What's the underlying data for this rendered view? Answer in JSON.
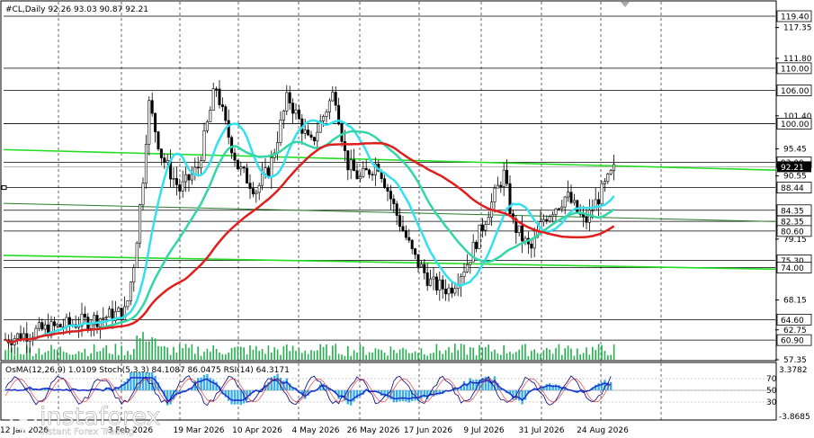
{
  "header": {
    "title": "#CL,Daily  92.26 93.03 90.87 92.21",
    "subpanel": "OsMA(12,26,9) 1.0109  Stoch(5,3,3) 84.1087 86.0475  RSI(14) 64.3171"
  },
  "watermark": {
    "brand": "instaforex",
    "tagline": "Instant Forex Trading"
  },
  "colors": {
    "candles": "#000000",
    "ma_cyan": "#33e0f0",
    "ma_teal": "#33d6a6",
    "ma_red": "#e01e1e",
    "trend_green": "#22dd22",
    "volume": "#22b14c",
    "osma_hist": "#3aaee8",
    "osma_signal": "#1a2fd0",
    "stoch_main": "#000088",
    "stoch_signal": "#ee2222"
  },
  "chart_data": {
    "type": "candlestick",
    "symbol": "#CL",
    "timeframe": "Daily",
    "last": {
      "open": 92.26,
      "high": 93.03,
      "low": 90.87,
      "close": 92.21
    },
    "ylim": [
      57.35,
      122
    ],
    "price_levels": [
      119.4,
      110.0,
      106.0,
      100.0,
      93.0,
      88.44,
      84.35,
      82.35,
      80.6,
      75.3,
      74.0,
      64.6,
      60.9
    ],
    "axis_ticks": [
      117.35,
      111.8,
      101.4,
      95.45,
      90.55,
      79.15,
      68.15,
      62.75,
      57.35
    ],
    "current_price": 92.21,
    "x_labels": [
      "12 Jan 2026",
      "3 Feb 2026",
      "19 Mar 2026",
      "10 Apr 2026",
      "4 May 2026",
      "26 May 2026",
      "17 Jun 2026",
      "9 Jul 2026",
      "31 Jul 2026",
      "24 Aug 2026"
    ],
    "subpanel": {
      "osma": 1.0109,
      "stoch_k": 84.1087,
      "stoch_d": 86.0475,
      "rsi": 64.3171,
      "scale_top": "3.3782",
      "scale_bottom": "-3.8685",
      "levels": [
        "70",
        "50",
        "30"
      ]
    }
  }
}
